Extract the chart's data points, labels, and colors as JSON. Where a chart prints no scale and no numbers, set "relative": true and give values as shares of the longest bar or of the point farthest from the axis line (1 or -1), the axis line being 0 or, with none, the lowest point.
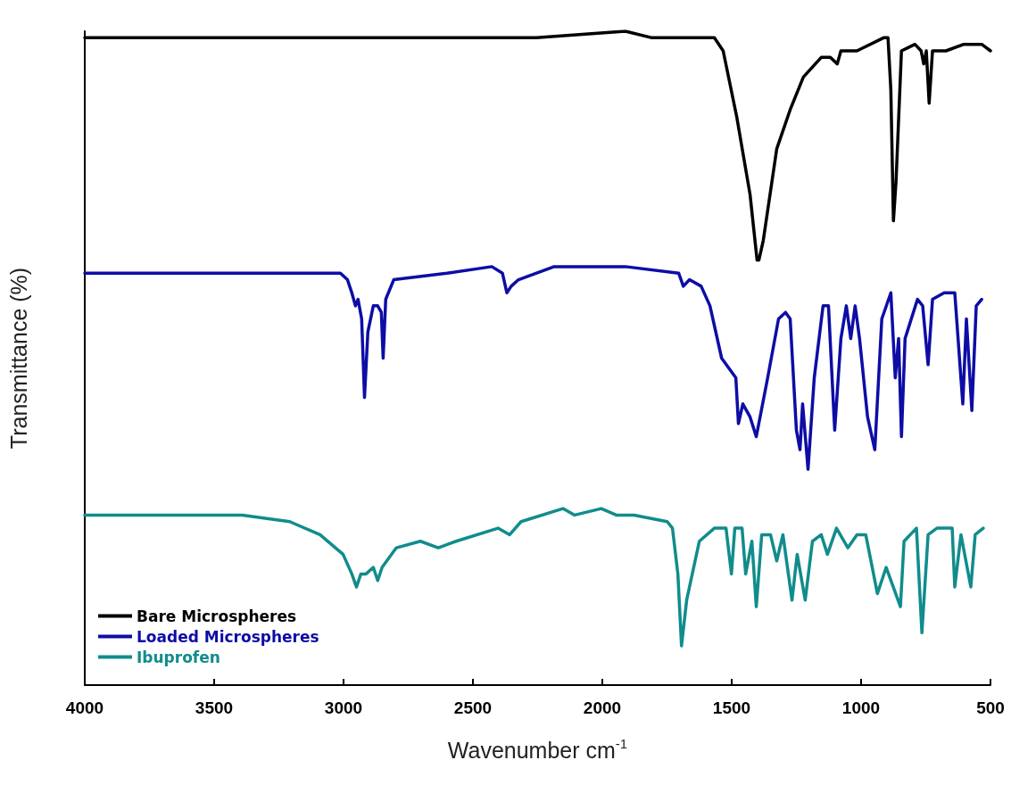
{
  "chart_data": {
    "type": "line",
    "relative": true,
    "xlabel": "Wavenumber cm$^{-1}$",
    "ylabel": "Transmittance (%)",
    "xlim": [
      4000,
      500
    ],
    "xticks": [
      4000,
      3500,
      3000,
      2500,
      2000,
      1500,
      1000,
      500
    ],
    "legend": "bottom left",
    "grid": false,
    "series": [
      {
        "name": "Bare Microspheres",
        "color": "#000000",
        "x": [
          4000,
          3288,
          2944,
          2926,
          2840,
          2530,
          2513,
          2462,
          2255,
          1911,
          1808,
          1797,
          1784,
          1601,
          1567,
          1533,
          1481,
          1429,
          1402,
          1395,
          1378,
          1326,
          1274,
          1223,
          1154,
          1119,
          1092,
          1078,
          1016,
          913,
          896,
          885,
          875,
          865,
          844,
          792,
          768,
          758,
          748,
          737,
          724,
          672,
          603,
          534,
          500
        ],
        "values": [
          0.99,
          0.99,
          0.99,
          0.99,
          0.99,
          0.99,
          0.99,
          0.99,
          0.99,
          1.0,
          0.99,
          0.99,
          0.99,
          0.99,
          0.99,
          0.97,
          0.87,
          0.75,
          0.65,
          0.65,
          0.68,
          0.82,
          0.88,
          0.93,
          0.96,
          0.96,
          0.95,
          0.97,
          0.97,
          0.99,
          0.99,
          0.91,
          0.71,
          0.77,
          0.97,
          0.98,
          0.97,
          0.95,
          0.97,
          0.89,
          0.97,
          0.97,
          0.98,
          0.98,
          0.97
        ]
      },
      {
        "name": "Loaded Microspheres",
        "color": "#0d0da6",
        "x": [
          4000,
          3288,
          3012,
          2985,
          2968,
          2954,
          2944,
          2930,
          2919,
          2906,
          2885,
          2868,
          2854,
          2847,
          2837,
          2806,
          2600,
          2427,
          2386,
          2369,
          2352,
          2324,
          2186,
          1911,
          1705,
          1687,
          1663,
          1618,
          1584,
          1539,
          1484,
          1474,
          1457,
          1429,
          1405,
          1361,
          1319,
          1292,
          1274,
          1250,
          1236,
          1226,
          1205,
          1181,
          1147,
          1126,
          1102,
          1078,
          1057,
          1040,
          1023,
          1006,
          975,
          947,
          920,
          885,
          868,
          855,
          844,
          830,
          782,
          762,
          741,
          724,
          679,
          638,
          607,
          593,
          572,
          555,
          534
        ],
        "values": [
          0.63,
          0.63,
          0.63,
          0.62,
          0.6,
          0.58,
          0.59,
          0.56,
          0.44,
          0.54,
          0.58,
          0.58,
          0.57,
          0.5,
          0.59,
          0.62,
          0.63,
          0.64,
          0.63,
          0.6,
          0.61,
          0.62,
          0.64,
          0.64,
          0.63,
          0.61,
          0.62,
          0.61,
          0.58,
          0.5,
          0.47,
          0.4,
          0.43,
          0.41,
          0.38,
          0.47,
          0.56,
          0.57,
          0.56,
          0.39,
          0.36,
          0.43,
          0.33,
          0.47,
          0.58,
          0.58,
          0.39,
          0.53,
          0.58,
          0.53,
          0.58,
          0.53,
          0.41,
          0.36,
          0.56,
          0.6,
          0.47,
          0.53,
          0.38,
          0.53,
          0.59,
          0.58,
          0.49,
          0.59,
          0.6,
          0.6,
          0.43,
          0.56,
          0.42,
          0.58,
          0.59
        ]
      },
      {
        "name": "Ibuprofen",
        "color": "#118c8c",
        "x": [
          4000,
          3391,
          3208,
          3091,
          3002,
          2968,
          2950,
          2933,
          2913,
          2885,
          2868,
          2851,
          2796,
          2703,
          2634,
          2565,
          2403,
          2358,
          2314,
          2152,
          2107,
          2004,
          1946,
          1877,
          1749,
          1729,
          1708,
          1694,
          1674,
          1625,
          1567,
          1522,
          1501,
          1488,
          1460,
          1446,
          1422,
          1405,
          1384,
          1350,
          1326,
          1302,
          1267,
          1247,
          1216,
          1188,
          1154,
          1130,
          1095,
          1051,
          1016,
          982,
          937,
          903,
          848,
          834,
          786,
          765,
          741,
          707,
          648,
          638,
          614,
          576,
          559,
          528
        ],
        "values": [
          0.26,
          0.26,
          0.25,
          0.23,
          0.2,
          0.17,
          0.15,
          0.17,
          0.17,
          0.18,
          0.16,
          0.18,
          0.21,
          0.22,
          0.21,
          0.22,
          0.24,
          0.23,
          0.25,
          0.27,
          0.26,
          0.27,
          0.26,
          0.26,
          0.25,
          0.24,
          0.17,
          0.06,
          0.13,
          0.22,
          0.24,
          0.24,
          0.17,
          0.24,
          0.24,
          0.17,
          0.22,
          0.12,
          0.23,
          0.23,
          0.19,
          0.23,
          0.13,
          0.2,
          0.13,
          0.22,
          0.23,
          0.2,
          0.24,
          0.21,
          0.23,
          0.23,
          0.14,
          0.18,
          0.12,
          0.22,
          0.24,
          0.08,
          0.23,
          0.24,
          0.24,
          0.15,
          0.23,
          0.15,
          0.23,
          0.24
        ]
      }
    ]
  }
}
